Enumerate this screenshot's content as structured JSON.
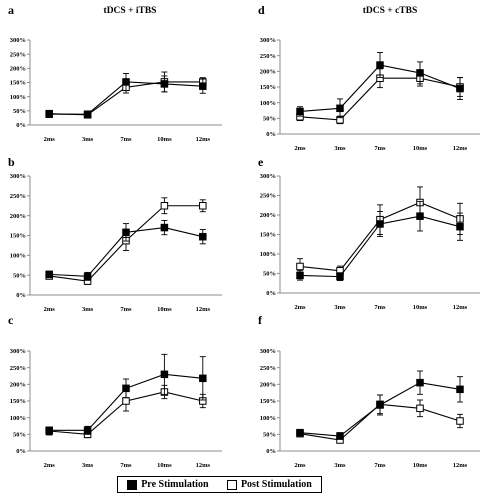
{
  "colors": {
    "pre": "#000000",
    "post": "#ffffff",
    "axis": "#8c8c8c",
    "line": "#000000"
  },
  "legend": {
    "pre": "Pre Stimulation",
    "post": "Post Stimulation"
  },
  "chart_data": [
    {
      "type": "line",
      "panel_label": "a",
      "title": "tDCS + iTBS",
      "categories": [
        "2ms",
        "3ms",
        "7ms",
        "10ms",
        "12ms"
      ],
      "yticks": [
        "0%",
        "50%",
        "100%",
        "150%",
        "200%",
        "250%",
        "300%"
      ],
      "ylim": [
        0,
        300
      ],
      "grid": false,
      "legend_position": "bottom",
      "series": [
        {
          "name": "Pre Stimulation",
          "marker": "filled-square",
          "values": [
            38,
            38,
            152,
            145,
            137
          ],
          "errors": [
            8,
            6,
            30,
            28,
            25
          ]
        },
        {
          "name": "Post Stimulation",
          "marker": "open-square",
          "values": [
            40,
            36,
            133,
            152,
            152
          ],
          "errors": [
            10,
            8,
            20,
            35,
            15
          ]
        }
      ]
    },
    {
      "type": "line",
      "panel_label": "d",
      "title": "tDCS + cTBS",
      "categories": [
        "2ms",
        "3ms",
        "7ms",
        "10ms",
        "12ms"
      ],
      "yticks": [
        "0%",
        "50%",
        "100%",
        "150%",
        "200%",
        "250%",
        "300%"
      ],
      "ylim": [
        0,
        300
      ],
      "grid": false,
      "legend_position": "bottom",
      "series": [
        {
          "name": "Pre Stimulation",
          "marker": "filled-square",
          "values": [
            72,
            82,
            220,
            195,
            145
          ],
          "errors": [
            15,
            30,
            40,
            35,
            35
          ]
        },
        {
          "name": "Post Stimulation",
          "marker": "open-square",
          "values": [
            55,
            45,
            178,
            178,
            150
          ],
          "errors": [
            12,
            12,
            30,
            25,
            30
          ]
        }
      ]
    },
    {
      "type": "line",
      "panel_label": "b",
      "categories": [
        "2ms",
        "3ms",
        "7ms",
        "10ms",
        "12ms"
      ],
      "yticks": [
        "0%",
        "50%",
        "100%",
        "150%",
        "200%",
        "250%",
        "300%"
      ],
      "ylim": [
        0,
        300
      ],
      "grid": false,
      "legend_position": "bottom",
      "series": [
        {
          "name": "Pre Stimulation",
          "marker": "filled-square",
          "values": [
            52,
            47,
            158,
            170,
            147
          ],
          "errors": [
            8,
            10,
            22,
            18,
            18
          ]
        },
        {
          "name": "Post Stimulation",
          "marker": "open-square",
          "values": [
            48,
            35,
            137,
            225,
            225
          ],
          "errors": [
            8,
            8,
            25,
            20,
            15
          ]
        }
      ]
    },
    {
      "type": "line",
      "panel_label": "e",
      "categories": [
        "2ms",
        "3ms",
        "7ms",
        "10ms",
        "12ms"
      ],
      "yticks": [
        "0%",
        "50%",
        "100%",
        "150%",
        "200%",
        "250%",
        "300%"
      ],
      "ylim": [
        0,
        300
      ],
      "grid": false,
      "legend_position": "bottom",
      "series": [
        {
          "name": "Pre Stimulation",
          "marker": "filled-square",
          "values": [
            45,
            42,
            177,
            197,
            170
          ],
          "errors": [
            12,
            10,
            32,
            38,
            35
          ]
        },
        {
          "name": "Post Stimulation",
          "marker": "open-square",
          "values": [
            68,
            57,
            188,
            232,
            190
          ],
          "errors": [
            20,
            12,
            38,
            40,
            40
          ]
        }
      ]
    },
    {
      "type": "line",
      "panel_label": "c",
      "categories": [
        "2ms",
        "3ms",
        "7ms",
        "10ms",
        "12ms"
      ],
      "yticks": [
        "0%",
        "50%",
        "100%",
        "150%",
        "200%",
        "250%",
        "300%"
      ],
      "ylim": [
        0,
        300
      ],
      "grid": false,
      "legend_position": "bottom",
      "series": [
        {
          "name": "Pre Stimulation",
          "marker": "filled-square",
          "values": [
            62,
            62,
            188,
            230,
            218
          ],
          "errors": [
            10,
            12,
            28,
            60,
            65
          ]
        },
        {
          "name": "Post Stimulation",
          "marker": "open-square",
          "values": [
            60,
            50,
            150,
            177,
            150
          ],
          "errors": [
            12,
            10,
            30,
            20,
            20
          ]
        }
      ]
    },
    {
      "type": "line",
      "panel_label": "f",
      "categories": [
        "2ms",
        "3ms",
        "7ms",
        "10ms",
        "12ms"
      ],
      "yticks": [
        "0%",
        "50%",
        "100%",
        "150%",
        "200%",
        "250%",
        "300%"
      ],
      "ylim": [
        0,
        300
      ],
      "grid": false,
      "legend_position": "bottom",
      "series": [
        {
          "name": "Pre Stimulation",
          "marker": "filled-square",
          "values": [
            55,
            45,
            138,
            205,
            185
          ],
          "errors": [
            8,
            10,
            30,
            35,
            38
          ]
        },
        {
          "name": "Post Stimulation",
          "marker": "open-square",
          "values": [
            52,
            33,
            140,
            128,
            90
          ],
          "errors": [
            8,
            8,
            28,
            25,
            20
          ]
        }
      ]
    }
  ]
}
